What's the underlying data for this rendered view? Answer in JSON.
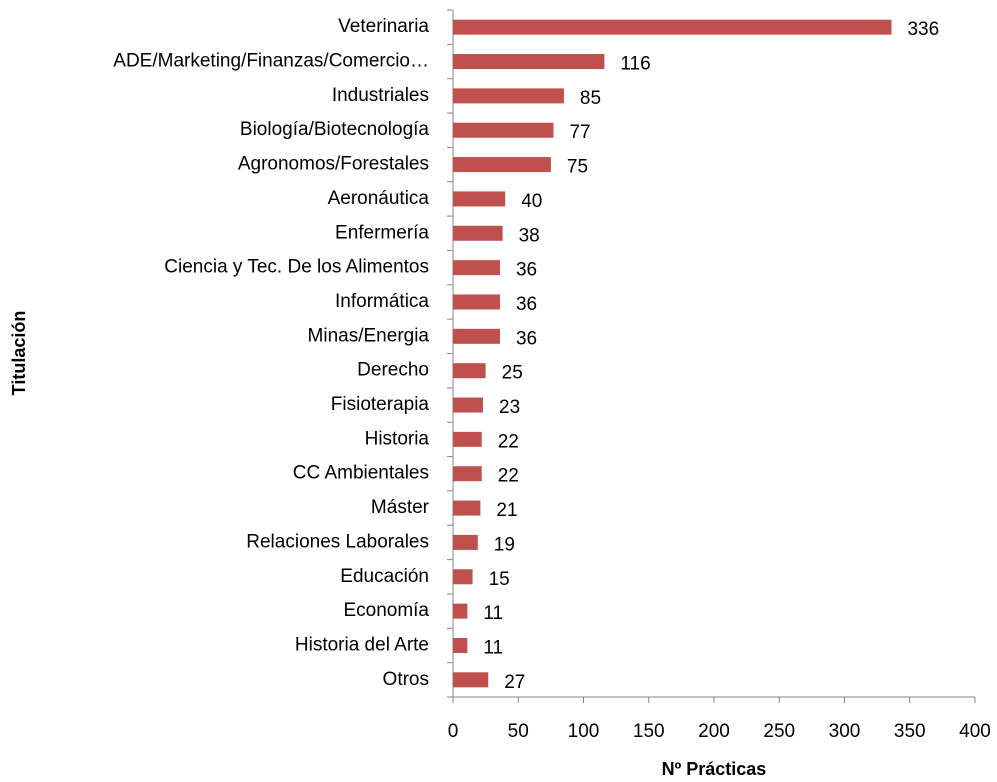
{
  "chart_data": {
    "type": "bar",
    "orientation": "horizontal",
    "xlabel": "Nº Prácticas",
    "ylabel": "Titulación",
    "categories": [
      "Veterinaria",
      "ADE/Marketing/Finanzas/Comercio…",
      "Industriales",
      "Biología/Biotecnología",
      "Agronomos/Forestales",
      "Aeronáutica",
      "Enfermería",
      "Ciencia y Tec. De los Alimentos",
      "Informática",
      "Minas/Energia",
      "Derecho",
      "Fisioterapia",
      "Historia",
      "CC Ambientales",
      "Máster",
      "Relaciones Laborales",
      "Educación",
      "Economía",
      "Historia del Arte",
      "Otros"
    ],
    "values": [
      336,
      116,
      85,
      77,
      75,
      40,
      38,
      36,
      36,
      36,
      25,
      23,
      22,
      22,
      21,
      19,
      15,
      11,
      11,
      27
    ],
    "color": "#c0504d",
    "xlim": [
      0,
      400
    ],
    "xticks": [
      0,
      50,
      100,
      150,
      200,
      250,
      300,
      350,
      400
    ],
    "grid": false
  }
}
